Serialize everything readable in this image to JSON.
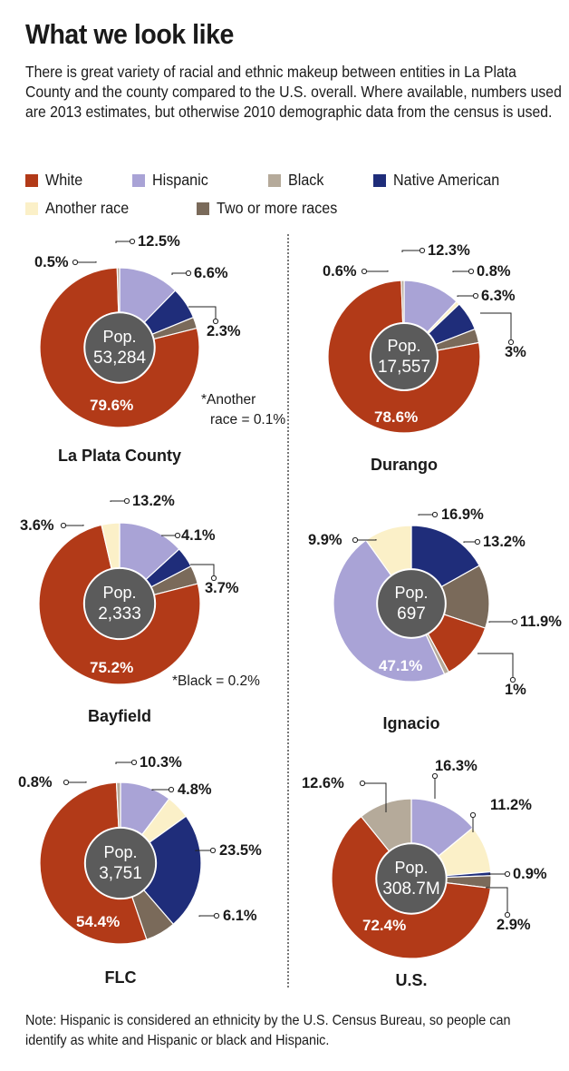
{
  "header": {
    "title": "What we look like",
    "subtitle": "There is great variety of racial and ethnic makeup between entities in La Plata County and the county compared to the U.S. overall. Where available, numbers used are 2013 estimates, but otherwise 2010 demographic data from the census is used."
  },
  "legend": [
    {
      "name": "White",
      "color": "#b23a18"
    },
    {
      "name": "Hispanic",
      "color": "#a9a3d6"
    },
    {
      "name": "Black",
      "color": "#b5aa9a"
    },
    {
      "name": "Native American",
      "color": "#1f2d7a"
    },
    {
      "name": "Another race",
      "color": "#fbf0c8"
    },
    {
      "name": "Two or more races",
      "color": "#7a6a5a"
    }
  ],
  "note": "Note: Hispanic is considered an ethnicity by the U.S. Census Bureau, so people can identify as white and Hispanic or black and Hispanic.",
  "chart_data": [
    {
      "type": "pie",
      "title": "La Plata County",
      "center_label": "Pop.",
      "center_value": "53,284",
      "footnote": "*Another race = 0.1%",
      "slices": [
        {
          "category": "Hispanic",
          "value": 12.5,
          "label": "12.5%"
        },
        {
          "category": "Native American",
          "value": 6.6,
          "label": "6.6%"
        },
        {
          "category": "Two or more races",
          "value": 2.3,
          "label": "2.3%"
        },
        {
          "category": "White",
          "value": 79.6,
          "label": "79.6%"
        },
        {
          "category": "Black",
          "value": 0.5,
          "label": "0.5%"
        }
      ]
    },
    {
      "type": "pie",
      "title": "Durango",
      "center_label": "Pop.",
      "center_value": "17,557",
      "footnote": "",
      "slices": [
        {
          "category": "Hispanic",
          "value": 12.3,
          "label": "12.3%"
        },
        {
          "category": "Another race",
          "value": 0.8,
          "label": "0.8%"
        },
        {
          "category": "Native American",
          "value": 6.3,
          "label": "6.3%"
        },
        {
          "category": "Two or more races",
          "value": 3,
          "label": "3%"
        },
        {
          "category": "White",
          "value": 78.6,
          "label": "78.6%"
        },
        {
          "category": "Black",
          "value": 0.6,
          "label": "0.6%"
        }
      ]
    },
    {
      "type": "pie",
      "title": "Bayfield",
      "center_label": "Pop.",
      "center_value": "2,333",
      "footnote": "*Black = 0.2%",
      "slices": [
        {
          "category": "Hispanic",
          "value": 13.2,
          "label": "13.2%"
        },
        {
          "category": "Native American",
          "value": 4.1,
          "label": "4.1%"
        },
        {
          "category": "Two or more races",
          "value": 3.7,
          "label": "3.7%"
        },
        {
          "category": "White",
          "value": 75.2,
          "label": "75.2%"
        },
        {
          "category": "Another race",
          "value": 3.6,
          "label": "3.6%"
        }
      ]
    },
    {
      "type": "pie",
      "title": "Ignacio",
      "center_label": "Pop.",
      "center_value": "697",
      "footnote": "",
      "slices": [
        {
          "category": "Native American",
          "value": 16.9,
          "label": "16.9%"
        },
        {
          "category": "Two or more races",
          "value": 13.2,
          "label": "13.2%"
        },
        {
          "category": "White",
          "value": 11.9,
          "label": "11.9%"
        },
        {
          "category": "Black",
          "value": 1,
          "label": "1%"
        },
        {
          "category": "Hispanic",
          "value": 47.1,
          "label": "47.1%"
        },
        {
          "category": "Another race",
          "value": 9.9,
          "label": "9.9%"
        }
      ]
    },
    {
      "type": "pie",
      "title": "FLC",
      "center_label": "Pop.",
      "center_value": "3,751",
      "footnote": "",
      "slices": [
        {
          "category": "Hispanic",
          "value": 10.3,
          "label": "10.3%"
        },
        {
          "category": "Another race",
          "value": 4.8,
          "label": "4.8%"
        },
        {
          "category": "Native American",
          "value": 23.5,
          "label": "23.5%"
        },
        {
          "category": "Two or more races",
          "value": 6.1,
          "label": "6.1%"
        },
        {
          "category": "White",
          "value": 54.4,
          "label": "54.4%"
        },
        {
          "category": "Black",
          "value": 0.8,
          "label": "0.8%"
        }
      ]
    },
    {
      "type": "pie",
      "title": "U.S.",
      "center_label": "Pop.",
      "center_value": "308.7M",
      "footnote": "",
      "slices": [
        {
          "category": "Hispanic",
          "value": 16.3,
          "label": "16.3%"
        },
        {
          "category": "Another race",
          "value": 11.2,
          "label": "11.2%"
        },
        {
          "category": "Native American",
          "value": 0.9,
          "label": "0.9%"
        },
        {
          "category": "Two or more races",
          "value": 2.9,
          "label": "2.9%"
        },
        {
          "category": "White",
          "value": 72.4,
          "label": "72.4%"
        },
        {
          "category": "Black",
          "value": 12.6,
          "label": "12.6%"
        }
      ]
    }
  ]
}
